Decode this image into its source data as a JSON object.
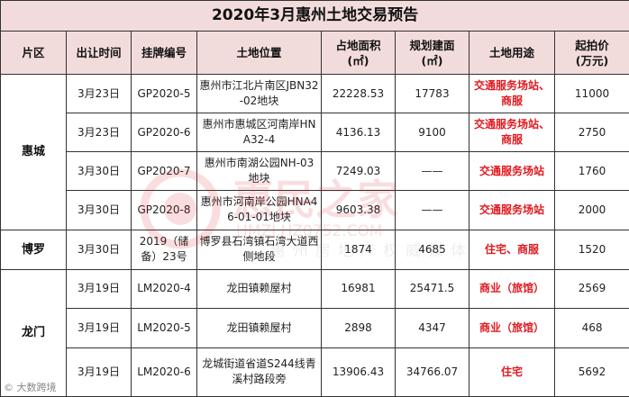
{
  "title": "2020年3月惠州土地交易预告",
  "headers": {
    "region": "片区",
    "date": "出让时间",
    "code": "挂牌编号",
    "location": "土地位置",
    "area": "占地面积",
    "area_unit": "(㎡)",
    "build": "规划建面",
    "build_unit": "(㎡)",
    "use": "土地用途",
    "price": "起拍价",
    "price_unit": "(万元)"
  },
  "regions": {
    "huicheng": "惠城",
    "boluo": "博罗",
    "longmen": "龙门"
  },
  "rows": [
    {
      "date": "3月23日",
      "code": "GP2020-5",
      "location": "惠州市江北片南区JBN32-02地块",
      "area": "22228.53",
      "build": "17783",
      "use": "交通服务场站、商服",
      "price": "11000"
    },
    {
      "date": "3月23日",
      "code": "GP2020-6",
      "location": "惠州市惠城区河南岸HNA32-4",
      "area": "4136.13",
      "build": "9100",
      "use": "交通服务场站、商服",
      "price": "2750"
    },
    {
      "date": "3月30日",
      "code": "GP2020-7",
      "location": "惠州市南湖公园NH-03地块",
      "area": "7249.03",
      "build": "——",
      "use": "交通服务场站",
      "price": "1760"
    },
    {
      "date": "3月30日",
      "code": "GP2020-8",
      "location": "惠州市河南岸公园HNA46-01-01地块",
      "area": "9603.38",
      "build": "——",
      "use": "交通服务场站",
      "price": "2000"
    },
    {
      "date": "3月30日",
      "code": "2019（储备）23号",
      "location": "博罗县石湾镇石湾大道西侧地段",
      "area": "1874",
      "build": "4685",
      "use": "住宅、商服",
      "price": "1520"
    },
    {
      "date": "3月19日",
      "code": "LM2020-4",
      "location": "龙田镇赖屋村",
      "area": "16981",
      "build": "25471.5",
      "use": "商业（旅馆）",
      "price": "2569"
    },
    {
      "date": "3月19日",
      "code": "LM2020-5",
      "location": "龙田镇赖屋村",
      "area": "2898",
      "build": "4347",
      "use": "商业（旅馆）",
      "price": "468"
    },
    {
      "date": "3月19日",
      "code": "LM2020-6",
      "location": "龙城街道省道S244线青溪村路段旁",
      "area": "13906.43",
      "build": "34766.07",
      "use": "住宅",
      "price": "5692"
    }
  ],
  "watermark": {
    "brand": "惠民之家",
    "url": "HMZJ.HZ0752.COM",
    "slogan": "惠州房地产权威媒体"
  },
  "source": "大数跨境",
  "colors": {
    "header_bg": "#f2dcdb",
    "use_red": "#e0191f",
    "border": "#333333"
  }
}
